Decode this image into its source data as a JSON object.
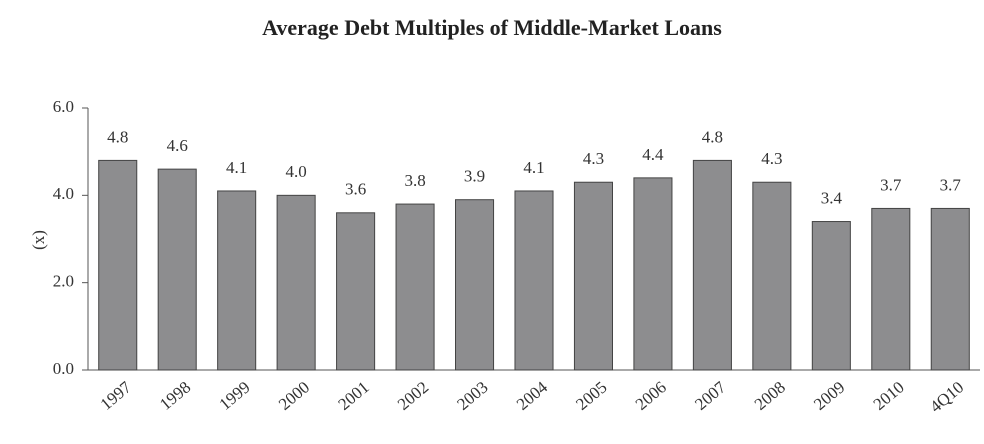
{
  "chart_data": {
    "type": "bar",
    "title": "Average Debt Multiples of Middle-Market Loans",
    "y_label": "(x)",
    "categories": [
      "1997",
      "1998",
      "1999",
      "2000",
      "2001",
      "2002",
      "2003",
      "2004",
      "2005",
      "2006",
      "2007",
      "2008",
      "2009",
      "2010",
      "4Q10"
    ],
    "values": [
      4.8,
      4.6,
      4.1,
      4.0,
      3.6,
      3.8,
      3.9,
      4.1,
      4.3,
      4.4,
      4.8,
      4.3,
      3.4,
      3.7,
      3.7
    ],
    "value_labels": [
      "4.8",
      "4.6",
      "4.1",
      "4.0",
      "3.6",
      "3.8",
      "3.9",
      "4.1",
      "4.3",
      "4.4",
      "4.8",
      "4.3",
      "3.4",
      "3.7",
      "3.7"
    ],
    "color": "#8d8d8f",
    "ylim": [
      0,
      6
    ],
    "yticks": [
      {
        "value": 0,
        "label": "0.0"
      },
      {
        "value": 2,
        "label": "2.0"
      },
      {
        "value": 4,
        "label": "4.0"
      },
      {
        "value": 6,
        "label": "6.0"
      }
    ],
    "grid": false
  }
}
